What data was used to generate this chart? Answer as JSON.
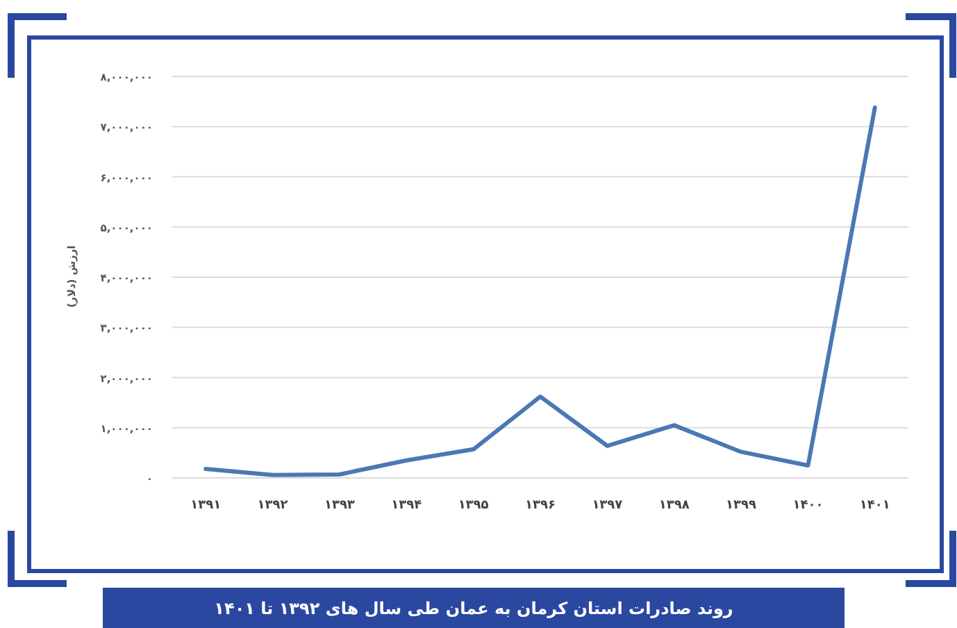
{
  "chart_data": {
    "type": "line",
    "title": "روند صادرات استان کرمان به عمان طی سال های ۱۳۹۲ تا ۱۴۰۱",
    "ylabel": "ارزش (دلار)",
    "categories": [
      "۱۳۹۱",
      "۱۳۹۲",
      "۱۳۹۳",
      "۱۳۹۴",
      "۱۳۹۵",
      "۱۳۹۶",
      "۱۳۹۷",
      "۱۳۹۸",
      "۱۳۹۹",
      "۱۴۰۰",
      "۱۴۰۱"
    ],
    "values": [
      180000,
      60000,
      70000,
      350000,
      570000,
      1620000,
      640000,
      1050000,
      520000,
      250000,
      7380000
    ],
    "color": "#4a78b4",
    "ylim": [
      0,
      8000000
    ],
    "yticks": [
      {
        "value": 0,
        "label": "۰"
      },
      {
        "value": 1000000,
        "label": "۱,۰۰۰,۰۰۰"
      },
      {
        "value": 2000000,
        "label": "۲,۰۰۰,۰۰۰"
      },
      {
        "value": 3000000,
        "label": "۳,۰۰۰,۰۰۰"
      },
      {
        "value": 4000000,
        "label": "۴,۰۰۰,۰۰۰"
      },
      {
        "value": 5000000,
        "label": "۵,۰۰۰,۰۰۰"
      },
      {
        "value": 6000000,
        "label": "۶,۰۰۰,۰۰۰"
      },
      {
        "value": 7000000,
        "label": "۷,۰۰۰,۰۰۰"
      },
      {
        "value": 8000000,
        "label": "۸,۰۰۰,۰۰۰"
      }
    ],
    "grid": "y",
    "marker": "none",
    "line_style": "solid"
  }
}
